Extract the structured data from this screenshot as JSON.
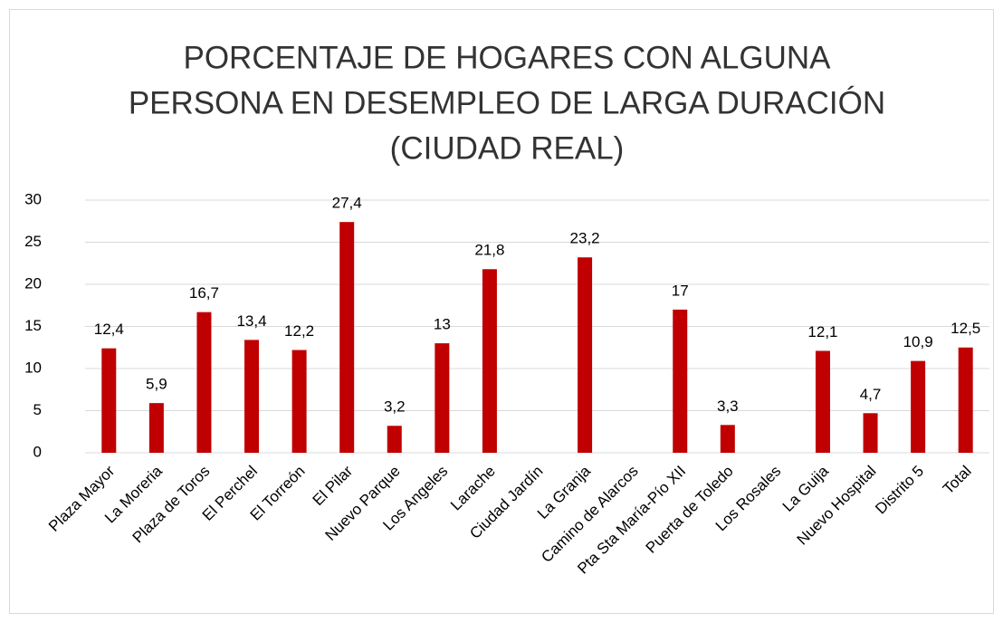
{
  "chart_data": {
    "type": "bar",
    "title": [
      "PORCENTAJE DE HOGARES CON ALGUNA",
      "PERSONA EN DESEMPLEO DE LARGA DURACIÓN",
      "(CIUDAD REAL)"
    ],
    "categories": [
      "Plaza Mayor",
      "La Moreria",
      "Plaza de Toros",
      "El Perchel",
      "El Torreón",
      "El Pilar",
      "Nuevo Parque",
      "Los Angeles",
      "Larache",
      "Ciudad Jardín",
      "La Granja",
      "Camino de Alarcos",
      "Pta Sta María-Pío XII",
      "Puerta de Toledo",
      "Los Rosales",
      "La Guija",
      "Nuevo Hospital",
      "Distrito 5",
      "Total"
    ],
    "values": [
      12.4,
      5.9,
      16.7,
      13.4,
      12.2,
      27.4,
      3.2,
      13,
      21.8,
      null,
      23.2,
      null,
      17,
      3.3,
      null,
      12.1,
      4.7,
      10.9,
      12.5
    ],
    "value_labels": [
      "12,4",
      "5,9",
      "16,7",
      "13,4",
      "12,2",
      "27,4",
      "3,2",
      "13",
      "21,8",
      null,
      "23,2",
      null,
      "17",
      "3,3",
      null,
      "12,1",
      "4,7",
      "10,9",
      "12,5"
    ],
    "color": "#c00000",
    "ylim": [
      0,
      30
    ],
    "yticks": [
      0,
      5,
      10,
      15,
      20,
      25,
      30
    ],
    "grid": true
  }
}
